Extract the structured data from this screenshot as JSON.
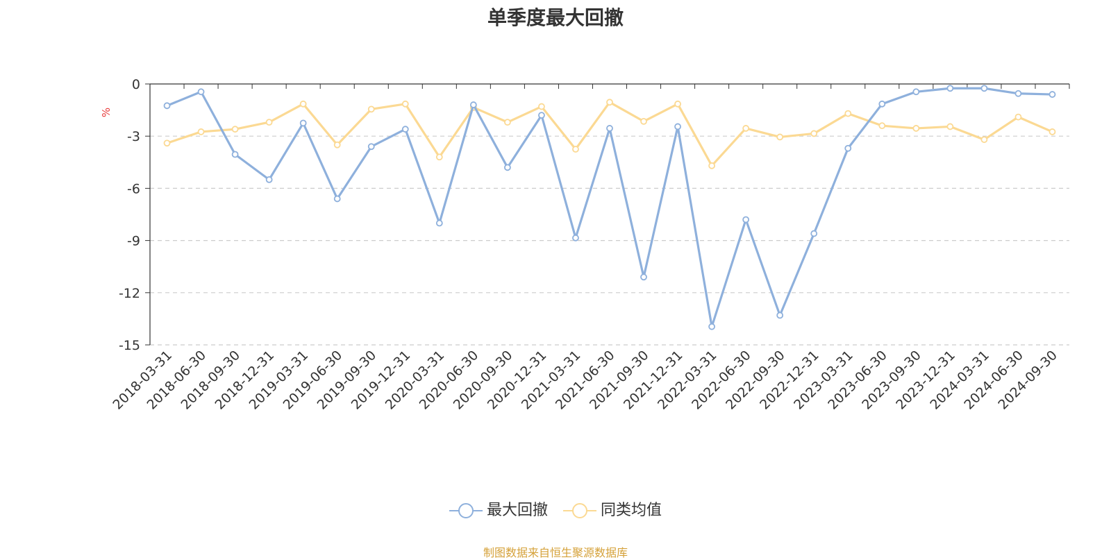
{
  "chart_data": {
    "type": "line",
    "title": "单季度最大回撤",
    "ylabel": "%",
    "ylim": [
      -15,
      0
    ],
    "yticks": [
      0,
      -3,
      -6,
      -9,
      -12,
      -15
    ],
    "grid": "horizontal dashed",
    "legend_position": "bottom-center",
    "categories": [
      "2018-03-31",
      "2018-06-30",
      "2018-09-30",
      "2018-12-31",
      "2019-03-31",
      "2019-06-30",
      "2019-09-30",
      "2019-12-31",
      "2020-03-31",
      "2020-06-30",
      "2020-09-30",
      "2020-12-31",
      "2021-03-31",
      "2021-06-30",
      "2021-09-30",
      "2021-12-31",
      "2022-03-31",
      "2022-06-30",
      "2022-09-30",
      "2022-12-31",
      "2023-03-31",
      "2023-06-30",
      "2023-09-30",
      "2023-12-31",
      "2024-03-31",
      "2024-06-30",
      "2024-09-30"
    ],
    "series": [
      {
        "name": "最大回撤",
        "color": "#8eb0dc",
        "values": [
          -1.25,
          -0.45,
          -4.05,
          -5.5,
          -2.25,
          -6.6,
          -3.6,
          -2.6,
          -8.0,
          -1.2,
          -4.8,
          -1.8,
          -8.85,
          -2.55,
          -11.1,
          -2.45,
          -13.95,
          -7.8,
          -13.3,
          -8.6,
          -3.7,
          -1.15,
          -0.45,
          -0.25,
          -0.25,
          -0.55,
          -0.6
        ]
      },
      {
        "name": "同类均值",
        "color": "#fbd993",
        "values": [
          -3.4,
          -2.75,
          -2.6,
          -2.2,
          -1.15,
          -3.5,
          -1.45,
          -1.15,
          -4.2,
          -1.35,
          -2.2,
          -1.3,
          -3.75,
          -1.05,
          -2.15,
          -1.15,
          -4.7,
          -2.55,
          -3.05,
          -2.85,
          -1.7,
          -2.4,
          -2.55,
          -2.45,
          -3.2,
          -1.9,
          -2.75
        ]
      }
    ]
  },
  "source_note": "制图数据来自恒生聚源数据库",
  "colors": {
    "axis": "#333333",
    "grid": "#cccccc",
    "ylabel": "#e83a3a",
    "source_note": "#d5a139",
    "title": "#333333"
  }
}
